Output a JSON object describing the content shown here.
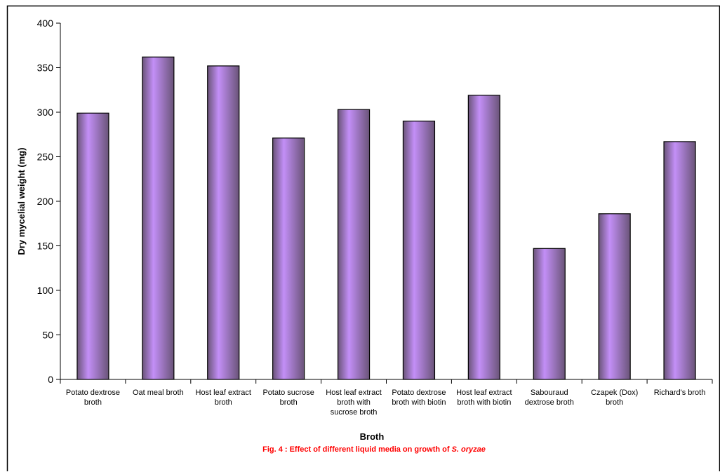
{
  "chart_data": {
    "type": "bar",
    "categories": [
      [
        "Potato dextrose",
        "broth"
      ],
      [
        "Oat meal broth"
      ],
      [
        "Host leaf  extract",
        "broth"
      ],
      [
        "Potato sucrose",
        "broth"
      ],
      [
        "Host leaf extract",
        "broth with",
        "sucrose broth"
      ],
      [
        "Potato dextrose",
        "broth with  biotin"
      ],
      [
        "Host leaf extract",
        "broth with biotin"
      ],
      [
        "Sabouraud",
        "dextrose broth"
      ],
      [
        "Czapek (Dox)",
        "broth"
      ],
      [
        "Richard's broth"
      ]
    ],
    "values": [
      299,
      362,
      352,
      271,
      303,
      290,
      319,
      147,
      186,
      267
    ],
    "xlabel": "Broth",
    "ylabel": "Dry mycelial weight (mg)",
    "ylim": [
      0,
      400
    ],
    "yticks": [
      0,
      50,
      100,
      150,
      200,
      250,
      300,
      350,
      400
    ],
    "grid": false,
    "legend": "none",
    "bar_color": "#c38ff7",
    "bar_shade": "#6a5478"
  },
  "caption": {
    "prefix": "Fig. 4 : Effect of different liquid media on growth of ",
    "species": "S. oryzae"
  }
}
